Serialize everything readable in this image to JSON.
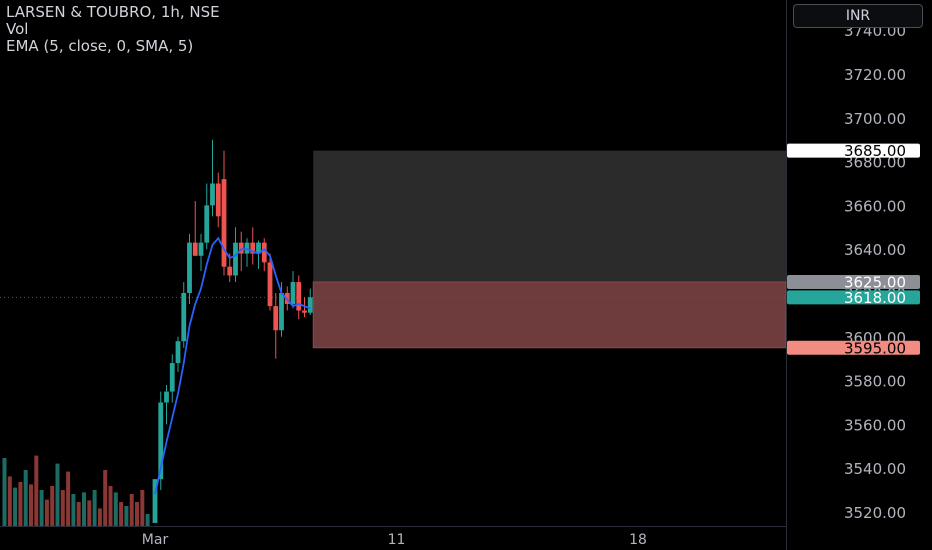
{
  "legend": {
    "title": "LARSEN & TOUBRO, 1h, NSE",
    "volume": "Vol",
    "ema": "EMA (5, close, 0, SMA, 5)"
  },
  "currency": "INR",
  "colors": {
    "up": "#26a69a",
    "down": "#ef5350",
    "ema_line": "#2962ff",
    "target_zone": "#2b2b2b",
    "stop_zone": "#6e3c3c"
  },
  "chart_data": {
    "type": "candlestick",
    "title": "",
    "y_ticks": [
      3520,
      3540,
      3560,
      3580,
      3600,
      3620,
      3640,
      3660,
      3680,
      3700,
      3720,
      3740
    ],
    "ylim": [
      3515,
      3750
    ],
    "x_labels": [
      {
        "label": "Mar",
        "bar": 0
      },
      {
        "label": "11",
        "bar": 42
      },
      {
        "label": "18",
        "bar": 84
      }
    ],
    "price_labels": [
      {
        "value": "3685.00",
        "kind": "target"
      },
      {
        "value": "3625.00",
        "kind": "entry"
      },
      {
        "value": "3618.00",
        "kind": "last"
      },
      {
        "value": "3595.00",
        "kind": "stop"
      }
    ],
    "position": {
      "entry": 3625,
      "target": 3685,
      "stop": 3595,
      "start_bar": 27,
      "end_bar": 105
    },
    "candles": [
      {
        "o": 3515,
        "h": 3535,
        "l": 3515,
        "c": 3535
      },
      {
        "o": 3535,
        "h": 3575,
        "l": 3530,
        "c": 3570
      },
      {
        "o": 3570,
        "h": 3578,
        "l": 3560,
        "c": 3575
      },
      {
        "o": 3575,
        "h": 3592,
        "l": 3570,
        "c": 3588
      },
      {
        "o": 3588,
        "h": 3600,
        "l": 3584,
        "c": 3598
      },
      {
        "o": 3598,
        "h": 3625,
        "l": 3595,
        "c": 3620
      },
      {
        "o": 3620,
        "h": 3647,
        "l": 3615,
        "c": 3643
      },
      {
        "o": 3643,
        "h": 3662,
        "l": 3637,
        "c": 3637
      },
      {
        "o": 3637,
        "h": 3647,
        "l": 3630,
        "c": 3643
      },
      {
        "o": 3643,
        "h": 3670,
        "l": 3640,
        "c": 3660
      },
      {
        "o": 3660,
        "h": 3690,
        "l": 3655,
        "c": 3670
      },
      {
        "o": 3670,
        "h": 3675,
        "l": 3650,
        "c": 3655
      },
      {
        "o": 3672,
        "h": 3685,
        "l": 3628,
        "c": 3632
      },
      {
        "o": 3632,
        "h": 3638,
        "l": 3625,
        "c": 3628
      },
      {
        "o": 3628,
        "h": 3650,
        "l": 3625,
        "c": 3643
      },
      {
        "o": 3643,
        "h": 3648,
        "l": 3630,
        "c": 3638
      },
      {
        "o": 3638,
        "h": 3645,
        "l": 3632,
        "c": 3643
      },
      {
        "o": 3643,
        "h": 3650,
        "l": 3633,
        "c": 3638
      },
      {
        "o": 3638,
        "h": 3644,
        "l": 3631,
        "c": 3643
      },
      {
        "o": 3643,
        "h": 3645,
        "l": 3630,
        "c": 3634
      },
      {
        "o": 3634,
        "h": 3638,
        "l": 3612,
        "c": 3614
      },
      {
        "o": 3614,
        "h": 3620,
        "l": 3590,
        "c": 3603
      },
      {
        "o": 3603,
        "h": 3625,
        "l": 3600,
        "c": 3620
      },
      {
        "o": 3620,
        "h": 3623,
        "l": 3612,
        "c": 3615
      },
      {
        "o": 3615,
        "h": 3630,
        "l": 3613,
        "c": 3625
      },
      {
        "o": 3625,
        "h": 3628,
        "l": 3608,
        "c": 3612
      },
      {
        "o": 3612,
        "h": 3618,
        "l": 3609,
        "c": 3611
      },
      {
        "o": 3611,
        "h": 3622,
        "l": 3610,
        "c": 3618
      }
    ],
    "ema_values": [
      3528,
      3540,
      3552,
      3563,
      3574,
      3588,
      3605,
      3615,
      3622,
      3633,
      3642,
      3645,
      3640,
      3636,
      3637,
      3640,
      3640,
      3639,
      3638,
      3640,
      3637,
      3628,
      3620,
      3617,
      3614,
      3615,
      3614,
      3613
    ],
    "volume": [
      {
        "v": 0.85,
        "up": true
      },
      {
        "v": 0.62,
        "up": false
      },
      {
        "v": 0.48,
        "up": true
      },
      {
        "v": 0.55,
        "up": false
      },
      {
        "v": 0.7,
        "up": true
      },
      {
        "v": 0.52,
        "up": false
      },
      {
        "v": 0.88,
        "up": false
      },
      {
        "v": 0.45,
        "up": true
      },
      {
        "v": 0.33,
        "up": false
      },
      {
        "v": 0.5,
        "up": false
      },
      {
        "v": 0.78,
        "up": true
      },
      {
        "v": 0.45,
        "up": false
      },
      {
        "v": 0.68,
        "up": false
      },
      {
        "v": 0.4,
        "up": true
      },
      {
        "v": 0.3,
        "up": false
      },
      {
        "v": 0.42,
        "up": true
      },
      {
        "v": 0.32,
        "up": false
      },
      {
        "v": 0.45,
        "up": true
      },
      {
        "v": 0.22,
        "up": false
      },
      {
        "v": 0.7,
        "up": false
      },
      {
        "v": 0.5,
        "up": false
      },
      {
        "v": 0.42,
        "up": true
      },
      {
        "v": 0.3,
        "up": false
      },
      {
        "v": 0.25,
        "up": true
      },
      {
        "v": 0.4,
        "up": false
      },
      {
        "v": 0.3,
        "up": false
      },
      {
        "v": 0.45,
        "up": false
      },
      {
        "v": 0.15,
        "up": true
      }
    ]
  }
}
